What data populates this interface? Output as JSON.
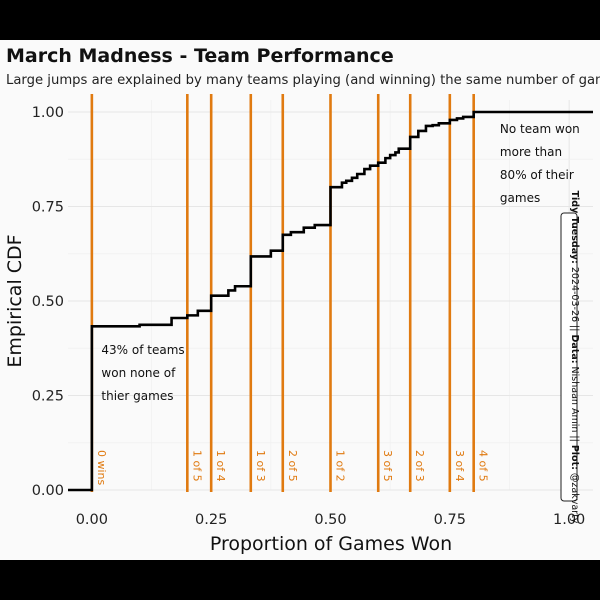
{
  "chart_data": {
    "type": "line",
    "step": true,
    "title": "March Madness - Team Performance",
    "subtitle": "Large jumps are explained by many teams playing (and winning) the same number of games.",
    "xlabel": "Proportion of Games Won",
    "ylabel": "Empirical CDF",
    "xlim": [
      -0.05,
      1.05
    ],
    "ylim": [
      0,
      1
    ],
    "x_ticks": [
      "0.00",
      "0.25",
      "0.50",
      "0.75",
      "1.00"
    ],
    "x_tick_values": [
      0,
      0.25,
      0.5,
      0.75,
      1.0
    ],
    "y_ticks": [
      "0.00",
      "0.25",
      "0.50",
      "0.75",
      "1.00"
    ],
    "y_tick_values": [
      0,
      0.25,
      0.5,
      0.75,
      1.0
    ],
    "grid": true,
    "line_color": "#000000",
    "vline_color": "#e07a10",
    "series": [
      {
        "x": [
          -0.05,
          0.0,
          0.1,
          0.167,
          0.2,
          0.222,
          0.25,
          0.286,
          0.3,
          0.333,
          0.375,
          0.4,
          0.417,
          0.444,
          0.467,
          0.5,
          0.524,
          0.533,
          0.545,
          0.556,
          0.571,
          0.583,
          0.6,
          0.615,
          0.625,
          0.636,
          0.643,
          0.667,
          0.684,
          0.7,
          0.714,
          0.727,
          0.75,
          0.765,
          0.778,
          0.8,
          1.05
        ],
        "y": [
          0.0,
          0.433,
          0.437,
          0.455,
          0.462,
          0.474,
          0.514,
          0.528,
          0.539,
          0.618,
          0.633,
          0.675,
          0.682,
          0.694,
          0.701,
          0.801,
          0.813,
          0.818,
          0.826,
          0.836,
          0.849,
          0.858,
          0.866,
          0.878,
          0.886,
          0.893,
          0.903,
          0.934,
          0.95,
          0.963,
          0.965,
          0.97,
          0.979,
          0.983,
          0.987,
          1.0,
          1.0
        ]
      }
    ],
    "vlines": [
      {
        "x": 0.0,
        "label": "0 wins"
      },
      {
        "x": 0.2,
        "label": "1 of 5"
      },
      {
        "x": 0.25,
        "label": "1 of 4"
      },
      {
        "x": 0.333,
        "label": "1 of 3"
      },
      {
        "x": 0.4,
        "label": "2 of 5"
      },
      {
        "x": 0.5,
        "label": "1 of 2"
      },
      {
        "x": 0.6,
        "label": "3 of 5"
      },
      {
        "x": 0.667,
        "label": "2 of 3"
      },
      {
        "x": 0.75,
        "label": "3 of 4"
      },
      {
        "x": 0.8,
        "label": "4 of 5"
      }
    ],
    "annotations": [
      {
        "x": 0.02,
        "y": 0.36,
        "lines": [
          "43% of teams",
          "won none of",
          "thier games"
        ]
      },
      {
        "x": 0.855,
        "y": 0.945,
        "lines": [
          "No team won",
          "more than",
          "80% of their",
          "games"
        ]
      }
    ],
    "caption": {
      "parts": [
        {
          "text": "Tidy Tuesday:",
          "bold": true
        },
        {
          "text": " 2024-03-26 || ",
          "bold": false
        },
        {
          "text": "Data:",
          "bold": true
        },
        {
          "text": " Nishaan Amin || ",
          "bold": false
        },
        {
          "text": "Plot:",
          "bold": true
        },
        {
          "text": " @zakvarty",
          "bold": false
        }
      ]
    }
  }
}
